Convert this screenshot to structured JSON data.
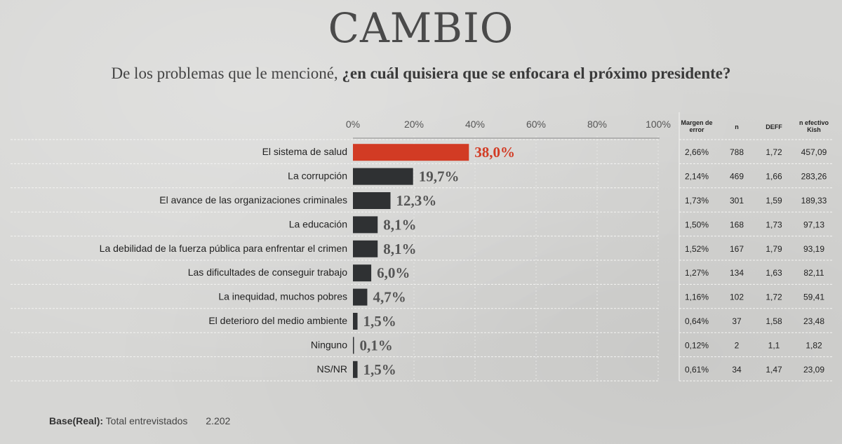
{
  "brand": "CAMBIO",
  "question": {
    "plain": "De los problemas que le mencioné, ",
    "bold": "¿en cuál quisiera que se enfocara el próximo presidente?"
  },
  "colors": {
    "highlight": "#d23b24",
    "bar": "#2f3133",
    "highlight_text": "#d23b24",
    "value_text": "#555555"
  },
  "chart_data": {
    "type": "bar",
    "orientation": "horizontal",
    "categories": [
      "El sistema de salud",
      "La corrupción",
      "El avance de las organizaciones criminales",
      "La educación",
      "La debilidad de la fuerza pública para enfrentar el crimen",
      "Las dificultades de conseguir trabajo",
      "La inequidad, muchos pobres",
      "El deterioro del medio ambiente",
      "Ninguno",
      "NS/NR"
    ],
    "values": [
      38.0,
      19.7,
      12.3,
      8.1,
      8.1,
      6.0,
      4.7,
      1.5,
      0.1,
      1.5
    ],
    "value_labels": [
      "38,0%",
      "19,7%",
      "12,3%",
      "8,1%",
      "8,1%",
      "6,0%",
      "4,7%",
      "1,5%",
      "0,1%",
      "1,5%"
    ],
    "highlight_index": 0,
    "xlim": [
      0,
      100
    ],
    "x_ticks": [
      "0%",
      "20%",
      "40%",
      "60%",
      "80%",
      "100%"
    ],
    "grid": true,
    "legend": "none"
  },
  "table": {
    "headers": [
      "Margen de error",
      "n",
      "DEFF",
      "n efectivo Kish"
    ],
    "rows": [
      [
        "2,66%",
        "788",
        "1,72",
        "457,09"
      ],
      [
        "2,14%",
        "469",
        "1,66",
        "283,26"
      ],
      [
        "1,73%",
        "301",
        "1,59",
        "189,33"
      ],
      [
        "1,50%",
        "168",
        "1,73",
        "97,13"
      ],
      [
        "1,52%",
        "167",
        "1,79",
        "93,19"
      ],
      [
        "1,27%",
        "134",
        "1,63",
        "82,11"
      ],
      [
        "1,16%",
        "102",
        "1,72",
        "59,41"
      ],
      [
        "0,64%",
        "37",
        "1,58",
        "23,48"
      ],
      [
        "0,12%",
        "2",
        "1,1",
        "1,82"
      ],
      [
        "0,61%",
        "34",
        "1,47",
        "23,09"
      ]
    ]
  },
  "footer": {
    "base_label": "Base(Real):",
    "base_text": "Total entrevistados",
    "base_value": "2.202"
  }
}
